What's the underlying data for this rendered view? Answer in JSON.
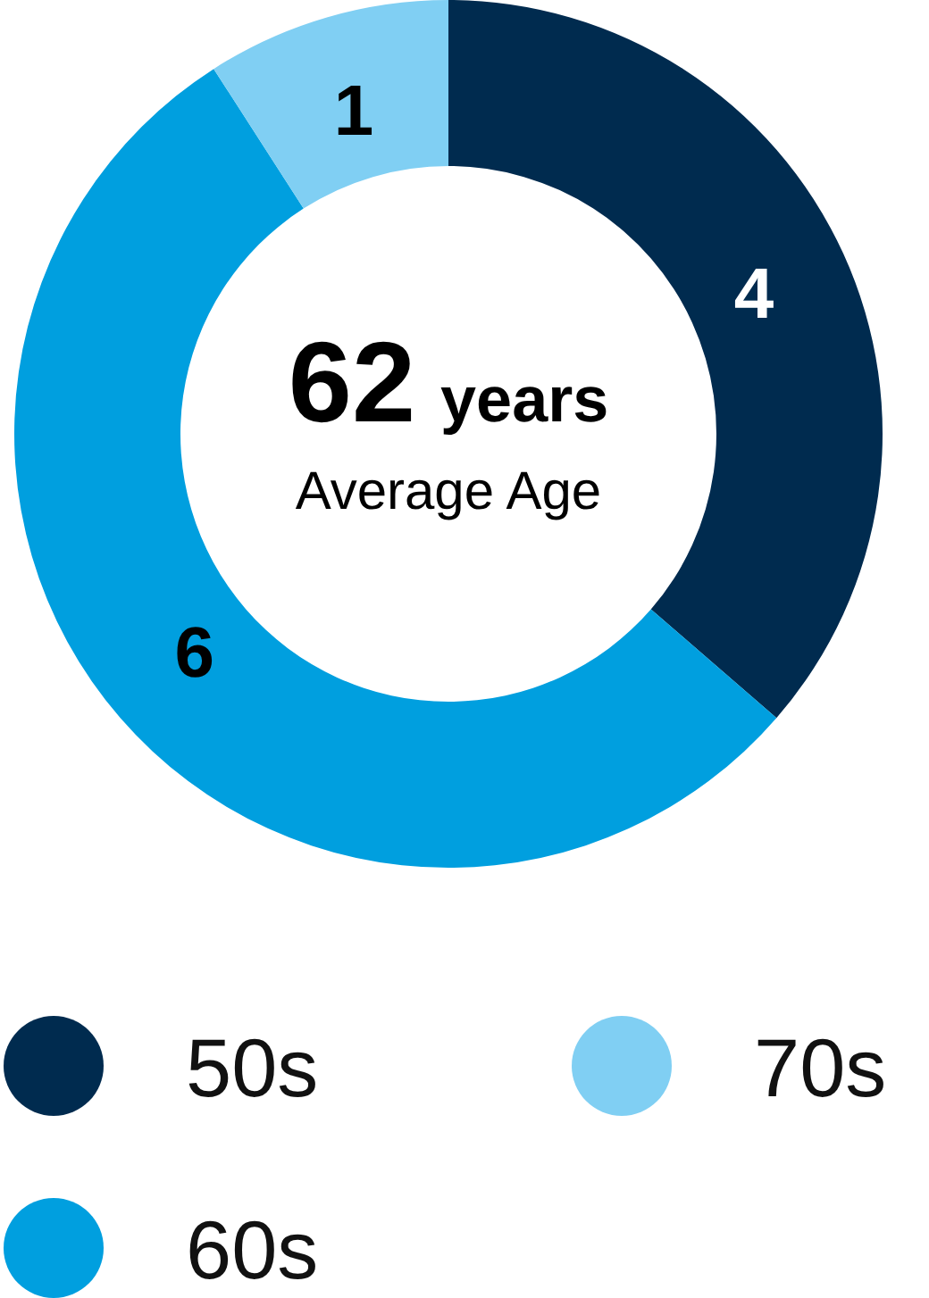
{
  "chart_data": {
    "type": "donut",
    "categories": [
      "50s",
      "60s",
      "70s"
    ],
    "values": [
      4,
      6,
      1
    ],
    "colors": [
      "#002b4f",
      "#009fdf",
      "#80cff3"
    ],
    "data_labels": true,
    "legend": "bottom",
    "annotations": [
      "62 years",
      "Average Age"
    ]
  }
}
